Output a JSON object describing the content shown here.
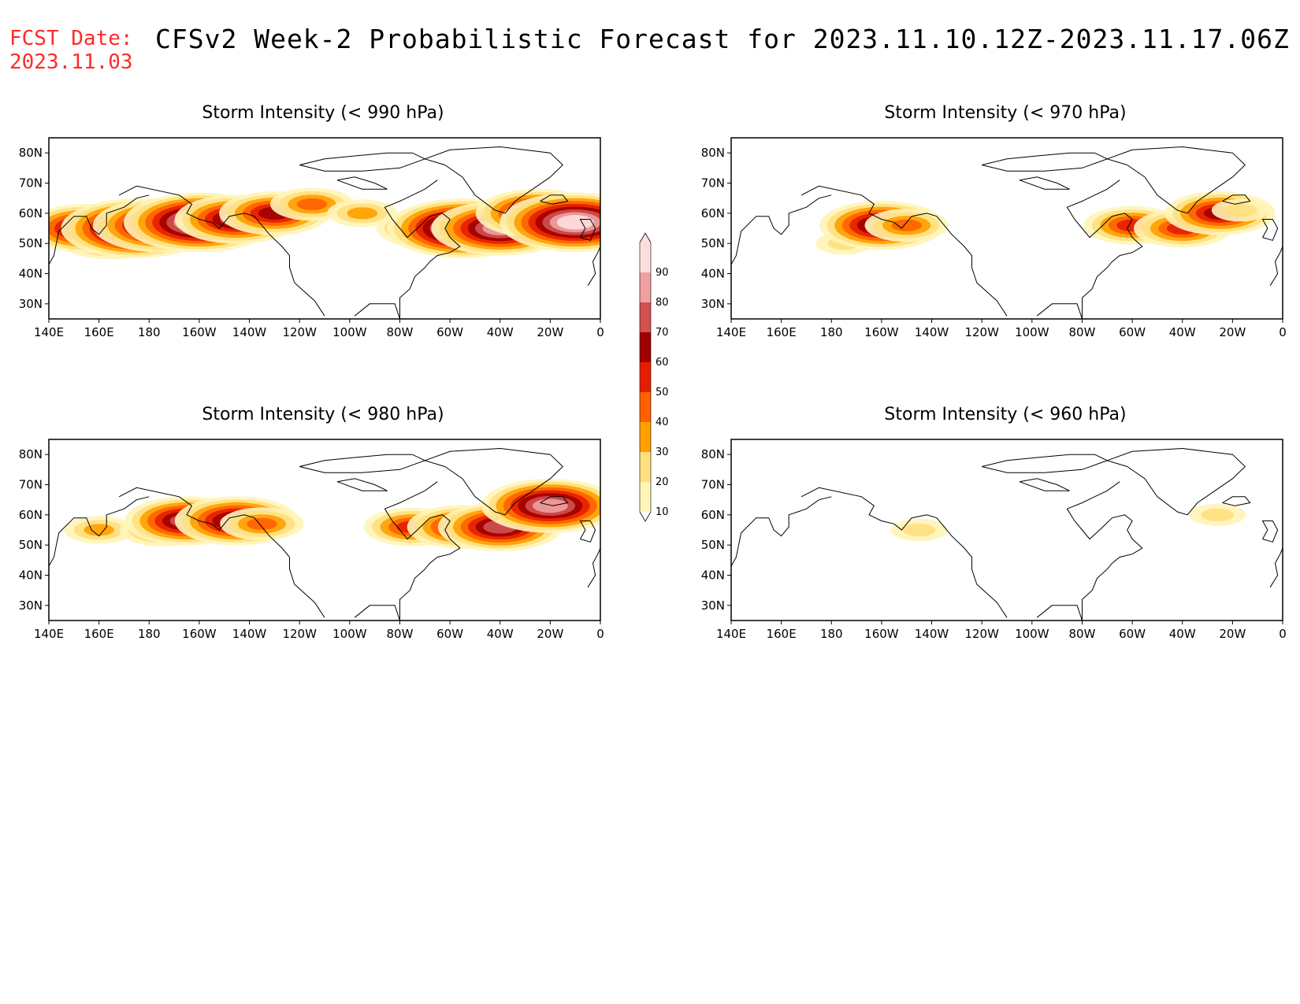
{
  "header": {
    "fcst_label": "FCST Date:",
    "fcst_date": "2023.11.03",
    "title": "CFSv2 Week-2 Probabilistic Forecast for 2023.11.10.12Z-2023.11.17.06Z"
  },
  "axes": {
    "lon_labels": [
      "140E",
      "160E",
      "180",
      "160W",
      "140W",
      "120W",
      "100W",
      "80W",
      "60W",
      "40W",
      "20W",
      "0"
    ],
    "lat_labels": [
      "80N",
      "70N",
      "60N",
      "50N",
      "40N",
      "30N"
    ]
  },
  "colorbar": {
    "levels": [
      "10",
      "20",
      "30",
      "40",
      "50",
      "60",
      "70",
      "80",
      "90"
    ],
    "colors": [
      "#fff5b8",
      "#ffe080",
      "#ffa000",
      "#ff6000",
      "#e61e00",
      "#a00000",
      "#d25050",
      "#f0a0a0",
      "#fddede"
    ]
  },
  "panels": [
    {
      "title": "Storm Intensity (< 990 hPa)",
      "blobs": [
        {
          "lon": 165,
          "lat": 52,
          "prob": 60
        },
        {
          "lon": 155,
          "lat": 55,
          "prob": 70
        },
        {
          "lon": 175,
          "lat": 55,
          "prob": 90
        },
        {
          "lon": 185,
          "lat": 56,
          "prob": 80
        },
        {
          "lon": 200,
          "lat": 57,
          "prob": 90
        },
        {
          "lon": 215,
          "lat": 58,
          "prob": 70
        },
        {
          "lon": 230,
          "lat": 60,
          "prob": 60
        },
        {
          "lon": 245,
          "lat": 63,
          "prob": 40
        },
        {
          "lon": 265,
          "lat": 60,
          "prob": 30
        },
        {
          "lon": 290,
          "lat": 55,
          "prob": 50
        },
        {
          "lon": 305,
          "lat": 55,
          "prob": 90
        },
        {
          "lon": 320,
          "lat": 55,
          "prob": 80
        },
        {
          "lon": 335,
          "lat": 60,
          "prob": 70
        },
        {
          "lon": 350,
          "lat": 57,
          "prob": 90
        }
      ]
    },
    {
      "title": "Storm Intensity (< 970 hPa)",
      "blobs": [
        {
          "lon": 185,
          "lat": 50,
          "prob": 20
        },
        {
          "lon": 200,
          "lat": 56,
          "prob": 70
        },
        {
          "lon": 210,
          "lat": 56,
          "prob": 40
        },
        {
          "lon": 300,
          "lat": 56,
          "prob": 50
        },
        {
          "lon": 320,
          "lat": 55,
          "prob": 50
        },
        {
          "lon": 335,
          "lat": 60,
          "prob": 60
        },
        {
          "lon": 343,
          "lat": 61,
          "prob": 20
        }
      ]
    },
    {
      "title": "Storm Intensity (< 980 hPa)",
      "blobs": [
        {
          "lon": 160,
          "lat": 55,
          "prob": 30
        },
        {
          "lon": 185,
          "lat": 55,
          "prob": 40
        },
        {
          "lon": 195,
          "lat": 58,
          "prob": 70
        },
        {
          "lon": 215,
          "lat": 58,
          "prob": 70
        },
        {
          "lon": 225,
          "lat": 57,
          "prob": 40
        },
        {
          "lon": 285,
          "lat": 56,
          "prob": 50
        },
        {
          "lon": 305,
          "lat": 56,
          "prob": 60
        },
        {
          "lon": 320,
          "lat": 56,
          "prob": 70
        },
        {
          "lon": 340,
          "lat": 63,
          "prob": 80
        }
      ]
    },
    {
      "title": "Storm Intensity (< 960 hPa)",
      "blobs": [
        {
          "lon": 215,
          "lat": 55,
          "prob": 20
        },
        {
          "lon": 334,
          "lat": 60,
          "prob": 20
        }
      ]
    }
  ]
}
